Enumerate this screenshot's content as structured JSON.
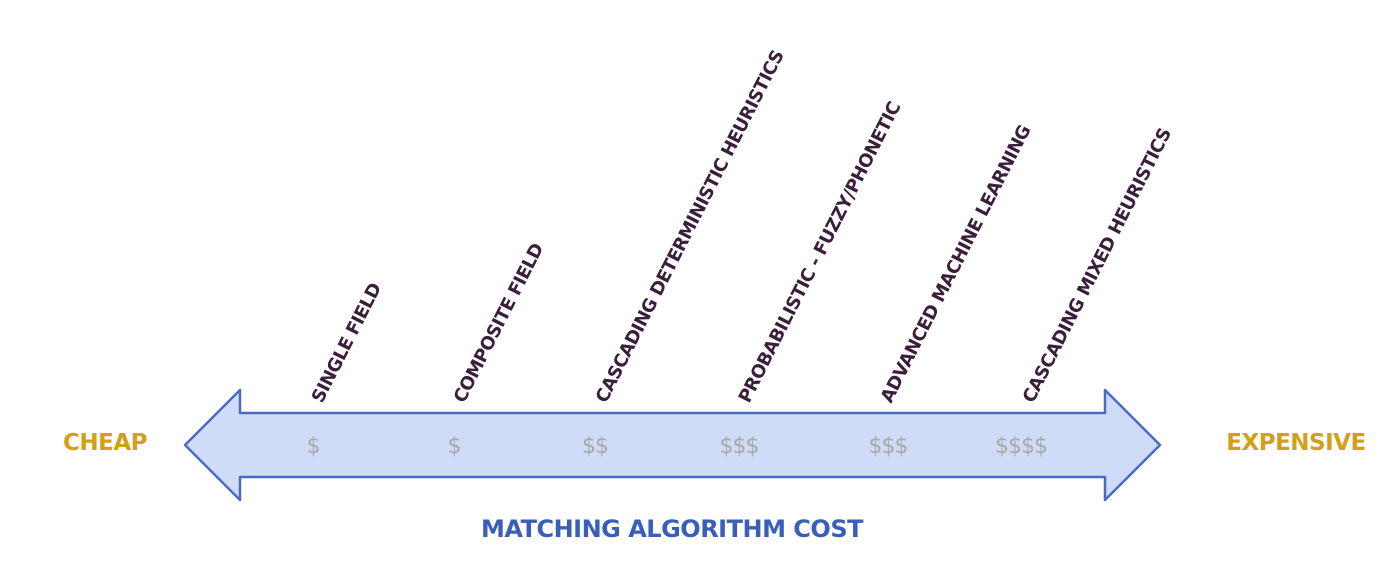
{
  "diagram": {
    "title": "MATCHING ALGORITHM COST",
    "left_end": "CHEAP",
    "right_end": "EXPENSIVE",
    "colors": {
      "arrow_fill": "#cfdcf8",
      "arrow_stroke": "#4a6cc0",
      "end_label": "#d4a017",
      "cost_label": "#a8a8a8",
      "algo_label": "#3a1e3a",
      "title": "#3a5fb8"
    },
    "algorithms": [
      {
        "name": "SINGLE FIELD",
        "cost": "$"
      },
      {
        "name": "COMPOSITE FIELD",
        "cost": "$"
      },
      {
        "name": "CASCADING DETERMINISTIC HEURISTICS",
        "cost": "$$"
      },
      {
        "name": "PROBABILISTIC - FUZZY/PHONETIC",
        "cost": "$$$"
      },
      {
        "name": "ADVANCED MACHINE LEARNING",
        "cost": "$$$"
      },
      {
        "name": "CASCADING MIXED HEURISTICS",
        "cost": "$$$$"
      }
    ]
  }
}
